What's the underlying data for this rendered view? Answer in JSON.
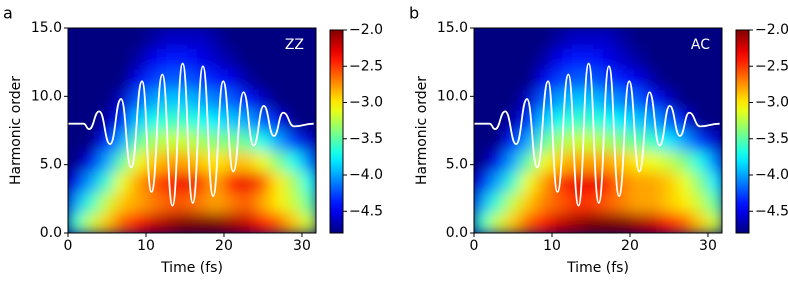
{
  "chart_data": [
    {
      "type": "heatmap",
      "panel_label": "a",
      "annotation": "ZZ",
      "xlabel": "Time (fs)",
      "ylabel": "Harmonic order",
      "xlim": [
        0,
        31.8
      ],
      "ylim": [
        0,
        15
      ],
      "xticks": [
        0,
        10,
        20,
        30
      ],
      "yticks": [
        {
          "value": 0,
          "label": "0.0"
        },
        {
          "value": 5,
          "label": "5.0"
        },
        {
          "value": 10,
          "label": "10.0"
        },
        {
          "value": 15,
          "label": "15.0"
        }
      ],
      "colormap": "jet",
      "clim": [
        -4.8,
        -2.0
      ],
      "cticks": [
        {
          "value": -4.5,
          "label": "−4.5"
        },
        {
          "value": -4,
          "label": "−4.0"
        },
        {
          "value": -3.5,
          "label": "−3.5"
        },
        {
          "value": -3,
          "label": "−3.0"
        },
        {
          "value": -2.5,
          "label": "−2.5"
        },
        {
          "value": -2,
          "label": "−2.0"
        }
      ],
      "x": [
        1,
        3,
        5,
        7,
        9,
        11,
        13,
        15,
        17,
        19,
        21,
        23,
        25,
        27,
        29,
        31
      ],
      "y": [
        0.75,
        2.25,
        3.75,
        5.25,
        6.75,
        8.25,
        9.75,
        11.25,
        12.75,
        14.25
      ],
      "z": [
        [
          -3.6,
          -3.2,
          -2.9,
          -2.6,
          -2.4,
          -2.2,
          -2.1,
          -2.0,
          -2.0,
          -2.0,
          -2.1,
          -2.2,
          -2.4,
          -2.6,
          -2.9,
          -3.2
        ],
        [
          -4.0,
          -3.6,
          -3.2,
          -2.9,
          -2.8,
          -2.7,
          -2.6,
          -2.6,
          -2.7,
          -2.8,
          -2.7,
          -2.6,
          -2.8,
          -3.0,
          -3.2,
          -3.5
        ],
        [
          -4.5,
          -4.0,
          -3.6,
          -3.1,
          -2.8,
          -2.6,
          -2.4,
          -2.3,
          -2.5,
          -2.8,
          -2.4,
          -2.3,
          -2.6,
          -3.0,
          -3.3,
          -3.7
        ],
        [
          -4.8,
          -4.5,
          -4.0,
          -3.5,
          -3.1,
          -2.9,
          -2.8,
          -2.8,
          -2.9,
          -3.0,
          -2.9,
          -2.9,
          -3.1,
          -3.4,
          -3.7,
          -4.1
        ],
        [
          -4.8,
          -4.8,
          -4.4,
          -4.0,
          -3.5,
          -3.3,
          -3.2,
          -3.2,
          -3.3,
          -3.4,
          -3.4,
          -3.5,
          -3.7,
          -4.0,
          -4.3,
          -4.6
        ],
        [
          -4.8,
          -4.8,
          -4.7,
          -4.4,
          -3.9,
          -3.7,
          -3.6,
          -3.6,
          -3.7,
          -3.8,
          -3.9,
          -4.0,
          -4.2,
          -4.5,
          -4.8,
          -4.8
        ],
        [
          -4.8,
          -4.8,
          -4.8,
          -4.6,
          -4.2,
          -4.0,
          -3.9,
          -3.9,
          -4.0,
          -4.1,
          -4.2,
          -4.4,
          -4.6,
          -4.8,
          -4.8,
          -4.8
        ],
        [
          -4.8,
          -4.8,
          -4.8,
          -4.8,
          -4.5,
          -4.3,
          -4.2,
          -4.2,
          -4.3,
          -4.4,
          -4.5,
          -4.7,
          -4.8,
          -4.8,
          -4.8,
          -4.8
        ],
        [
          -4.8,
          -4.8,
          -4.8,
          -4.8,
          -4.7,
          -4.5,
          -4.4,
          -4.4,
          -4.5,
          -4.6,
          -4.7,
          -4.8,
          -4.8,
          -4.8,
          -4.8,
          -4.8
        ],
        [
          -4.8,
          -4.8,
          -4.8,
          -4.8,
          -4.8,
          -4.7,
          -4.6,
          -4.6,
          -4.6,
          -4.7,
          -4.8,
          -4.8,
          -4.8,
          -4.8,
          -4.8,
          -4.8
        ]
      ],
      "line": {
        "color": "#ffffff",
        "x": [
          0,
          2.0,
          2.7,
          4.0,
          5.4,
          6.8,
          8.1,
          9.5,
          10.7,
          12.1,
          13.4,
          14.7,
          16.0,
          17.3,
          18.6,
          19.9,
          21.2,
          22.5,
          23.8,
          25.1,
          26.4,
          27.6,
          29.0,
          31.5
        ],
        "values": [
          8,
          8,
          7.6,
          8.9,
          6.5,
          9.8,
          4.8,
          11.1,
          3.0,
          11.6,
          2.0,
          12.4,
          2.2,
          12.2,
          2.7,
          11.1,
          4.5,
          10.3,
          6.4,
          9.3,
          7.1,
          8.8,
          7.8,
          8
        ]
      }
    },
    {
      "type": "heatmap",
      "panel_label": "b",
      "annotation": "AC",
      "xlabel": "Time (fs)",
      "ylabel": "Harmonic order",
      "xlim": [
        0,
        31.8
      ],
      "ylim": [
        0,
        15
      ],
      "xticks": [
        0,
        10,
        20,
        30
      ],
      "yticks": [
        {
          "value": 0,
          "label": "0.0"
        },
        {
          "value": 5,
          "label": "5.0"
        },
        {
          "value": 10,
          "label": "10.0"
        },
        {
          "value": 15,
          "label": "15.0"
        }
      ],
      "colormap": "jet",
      "clim": [
        -4.8,
        -2.0
      ],
      "cticks": [
        {
          "value": -4.5,
          "label": "−4.5"
        },
        {
          "value": -4,
          "label": "−4.0"
        },
        {
          "value": -3.5,
          "label": "−3.5"
        },
        {
          "value": -3,
          "label": "−3.0"
        },
        {
          "value": -2.5,
          "label": "−2.5"
        },
        {
          "value": -2,
          "label": "−2.0"
        }
      ],
      "x": [
        1,
        3,
        5,
        7,
        9,
        11,
        13,
        15,
        17,
        19,
        21,
        23,
        25,
        27,
        29,
        31
      ],
      "y": [
        0.75,
        2.25,
        3.75,
        5.25,
        6.75,
        8.25,
        9.75,
        11.25,
        12.75,
        14.25
      ],
      "z": [
        [
          -3.6,
          -3.2,
          -2.9,
          -2.6,
          -2.4,
          -2.2,
          -2.1,
          -2.0,
          -2.0,
          -2.0,
          -2.1,
          -2.2,
          -2.4,
          -2.6,
          -2.9,
          -3.2
        ],
        [
          -4.0,
          -3.6,
          -3.2,
          -2.9,
          -2.7,
          -2.6,
          -2.5,
          -2.5,
          -2.6,
          -2.7,
          -2.8,
          -2.8,
          -2.9,
          -3.0,
          -3.2,
          -3.5
        ],
        [
          -4.5,
          -4.0,
          -3.6,
          -3.1,
          -2.8,
          -2.5,
          -2.3,
          -2.3,
          -2.4,
          -2.7,
          -2.8,
          -2.8,
          -2.9,
          -3.1,
          -3.4,
          -3.8
        ],
        [
          -4.8,
          -4.5,
          -4.0,
          -3.5,
          -3.1,
          -2.9,
          -2.8,
          -2.8,
          -2.8,
          -2.9,
          -3.0,
          -3.1,
          -3.2,
          -3.4,
          -3.7,
          -4.1
        ],
        [
          -4.8,
          -4.8,
          -4.4,
          -4.0,
          -3.5,
          -3.3,
          -3.2,
          -3.2,
          -3.3,
          -3.4,
          -3.5,
          -3.6,
          -3.8,
          -4.0,
          -4.3,
          -4.6
        ],
        [
          -4.8,
          -4.8,
          -4.7,
          -4.4,
          -3.9,
          -3.7,
          -3.6,
          -3.6,
          -3.7,
          -3.8,
          -3.9,
          -4.0,
          -4.2,
          -4.5,
          -4.8,
          -4.8
        ],
        [
          -4.8,
          -4.8,
          -4.8,
          -4.6,
          -4.2,
          -4.0,
          -3.9,
          -3.9,
          -4.0,
          -4.1,
          -4.2,
          -4.4,
          -4.6,
          -4.8,
          -4.8,
          -4.8
        ],
        [
          -4.8,
          -4.8,
          -4.8,
          -4.8,
          -4.5,
          -4.3,
          -4.2,
          -4.2,
          -4.3,
          -4.4,
          -4.5,
          -4.7,
          -4.8,
          -4.8,
          -4.8,
          -4.8
        ],
        [
          -4.8,
          -4.8,
          -4.8,
          -4.8,
          -4.7,
          -4.5,
          -4.4,
          -4.4,
          -4.5,
          -4.6,
          -4.7,
          -4.8,
          -4.8,
          -4.8,
          -4.8,
          -4.8
        ],
        [
          -4.8,
          -4.8,
          -4.8,
          -4.8,
          -4.8,
          -4.7,
          -4.6,
          -4.6,
          -4.6,
          -4.7,
          -4.8,
          -4.8,
          -4.8,
          -4.8,
          -4.8,
          -4.8
        ]
      ],
      "line": {
        "color": "#ffffff",
        "x": [
          0,
          2.0,
          2.7,
          4.0,
          5.4,
          6.8,
          8.1,
          9.5,
          10.7,
          12.1,
          13.4,
          14.7,
          16.0,
          17.3,
          18.6,
          19.9,
          21.2,
          22.5,
          23.8,
          25.1,
          26.4,
          27.6,
          29.0,
          31.5
        ],
        "values": [
          8,
          8,
          7.6,
          8.9,
          6.5,
          9.8,
          4.8,
          11.1,
          3.0,
          11.6,
          2.0,
          12.4,
          2.2,
          12.2,
          2.7,
          11.1,
          4.5,
          10.3,
          6.4,
          9.3,
          7.1,
          8.8,
          7.8,
          8
        ]
      }
    }
  ]
}
